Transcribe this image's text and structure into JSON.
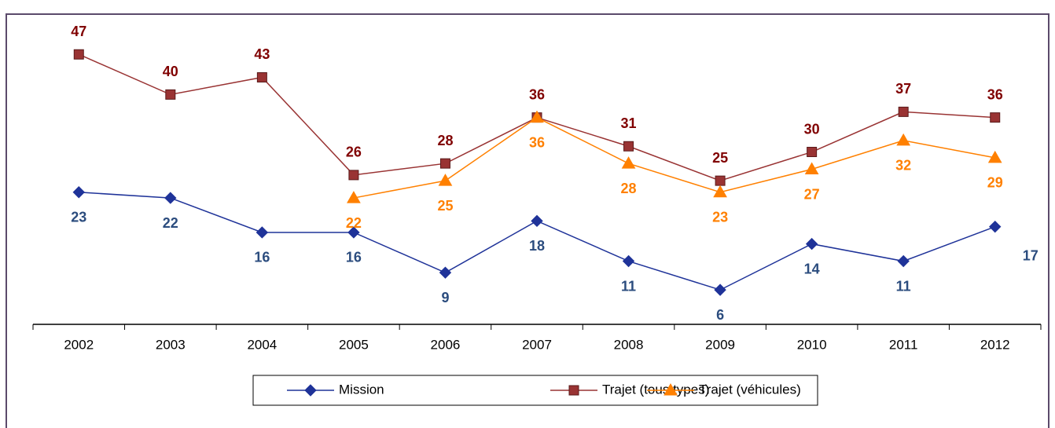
{
  "chart_data": {
    "type": "line",
    "categories": [
      "2002",
      "2003",
      "2004",
      "2005",
      "2006",
      "2007",
      "2008",
      "2009",
      "2010",
      "2011",
      "2012"
    ],
    "series": [
      {
        "name": "Mission",
        "color": "#1f3399",
        "label_color": "#2b4c7e",
        "marker": "diamond",
        "label_position": "below",
        "values": [
          23,
          22,
          16,
          16,
          9,
          18,
          11,
          6,
          14,
          11,
          17
        ]
      },
      {
        "name": "Trajet (tous types)",
        "color": "#993333",
        "label_color": "#800000",
        "marker": "square",
        "label_position": "above",
        "values": [
          47,
          40,
          43,
          26,
          28,
          36,
          31,
          25,
          30,
          37,
          36
        ]
      },
      {
        "name": "Trajet (véhicules)",
        "color": "#ff8000",
        "label_color": "#ff8000",
        "marker": "triangle",
        "label_position": "below",
        "values": [
          null,
          null,
          null,
          22,
          25,
          36,
          28,
          23,
          27,
          32,
          29
        ]
      }
    ],
    "ylim": [
      0,
      54
    ],
    "legend": "bottom"
  }
}
